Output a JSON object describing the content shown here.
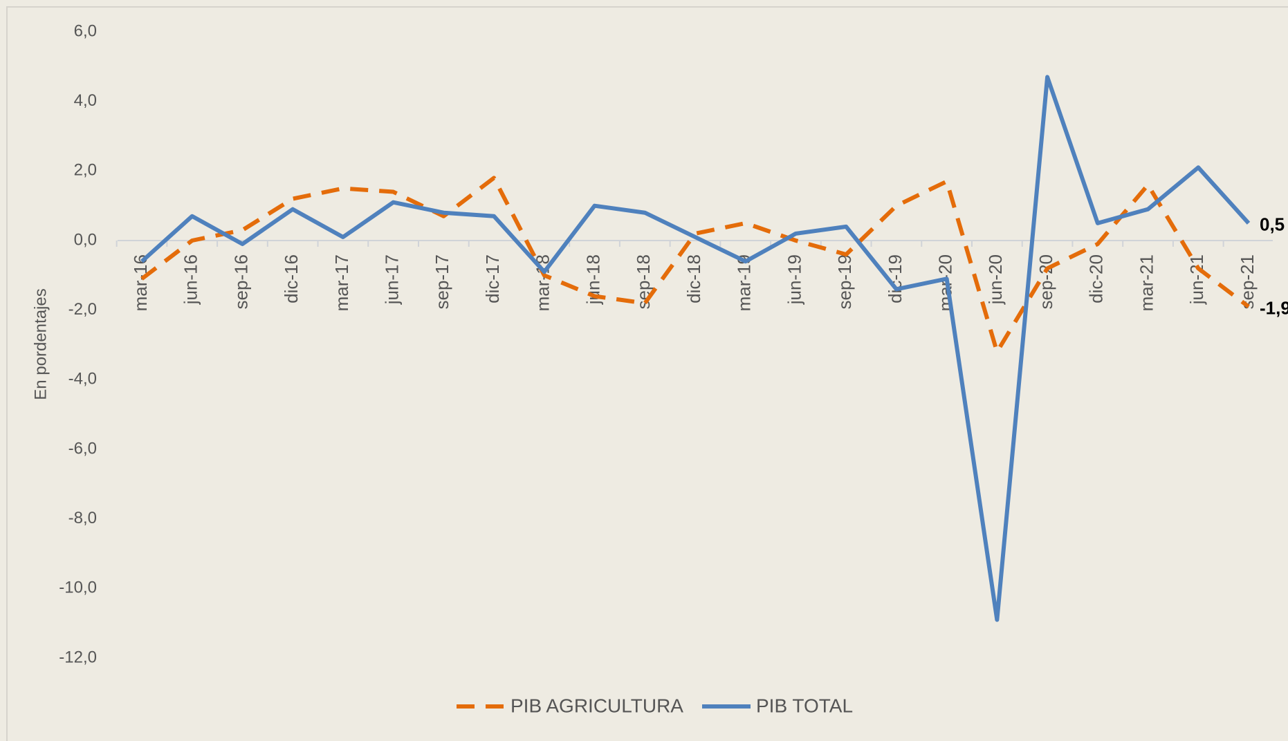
{
  "chart_data": {
    "type": "line",
    "ylabel": "En pordentajes",
    "categories": [
      "mar-16",
      "jun-16",
      "sep-16",
      "dic-16",
      "mar-17",
      "jun-17",
      "sep-17",
      "dic-17",
      "mar-18",
      "jun-18",
      "sep-18",
      "dic-18",
      "mar-19",
      "jun-19",
      "sep-19",
      "dic-19",
      "mar-20",
      "jun-20",
      "sep-20",
      "dic-20",
      "mar-21",
      "jun-21",
      "sep-21"
    ],
    "series": [
      {
        "name": "PIB AGRICULTURA",
        "color": "#e46c0a",
        "dashed": true,
        "values": [
          -1.1,
          0.0,
          0.3,
          1.2,
          1.5,
          1.4,
          0.7,
          1.8,
          -1.0,
          -1.6,
          -1.8,
          0.2,
          0.5,
          0.0,
          -0.4,
          1.0,
          1.7,
          -3.2,
          -0.8,
          -0.1,
          1.6,
          -0.8,
          -1.9
        ],
        "value_labels": [
          null,
          null,
          null,
          null,
          null,
          null,
          null,
          null,
          null,
          null,
          null,
          null,
          null,
          null,
          null,
          null,
          null,
          null,
          null,
          null,
          null,
          null,
          "-1,9"
        ]
      },
      {
        "name": "PIB TOTAL",
        "color": "#4f81bd",
        "dashed": false,
        "values": [
          -0.6,
          0.7,
          -0.1,
          0.9,
          0.1,
          1.1,
          0.8,
          0.7,
          -0.9,
          1.0,
          0.8,
          0.1,
          -0.6,
          0.2,
          0.4,
          -1.4,
          -1.1,
          -10.9,
          4.7,
          0.5,
          0.9,
          2.1,
          0.5
        ],
        "value_labels": [
          null,
          null,
          null,
          null,
          null,
          null,
          null,
          null,
          null,
          null,
          null,
          null,
          null,
          null,
          null,
          null,
          null,
          null,
          null,
          null,
          null,
          null,
          "0,5"
        ]
      }
    ],
    "ylim": [
      -12,
      6
    ],
    "yticks": [
      {
        "value": 6,
        "label": "6,0"
      },
      {
        "value": 4,
        "label": "4,0"
      },
      {
        "value": 2,
        "label": "2,0"
      },
      {
        "value": 0,
        "label": "0,0"
      },
      {
        "value": -2,
        "label": "-2,0"
      },
      {
        "value": -4,
        "label": "-4,0"
      },
      {
        "value": -6,
        "label": "-6,0"
      },
      {
        "value": -8,
        "label": "-8,0"
      },
      {
        "value": -10,
        "label": "-10,0"
      },
      {
        "value": -12,
        "label": "-12,0"
      }
    ],
    "legend": "bottom"
  }
}
